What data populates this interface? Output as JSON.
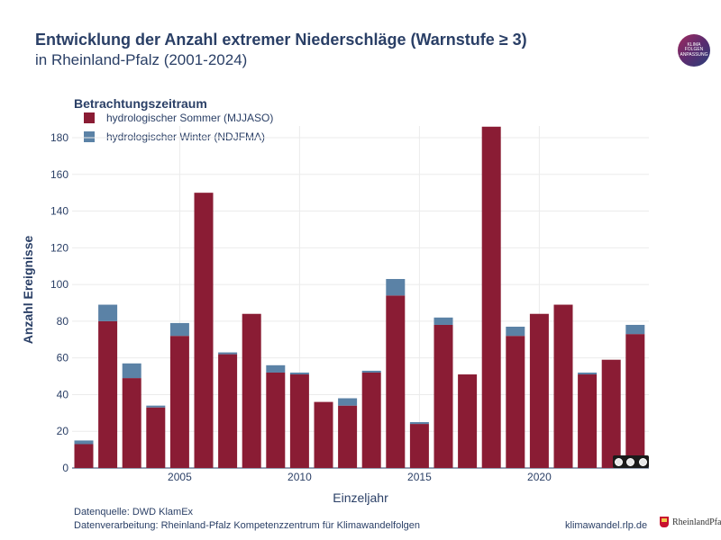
{
  "header": {
    "title": "Entwicklung der Anzahl extremer Niederschläge (Warnstufe ≥ 3)",
    "subtitle": "in Rheinland-Pfalz (2001-2024)"
  },
  "logo": {
    "line1": "KLIMA",
    "line2": "FOLGEN",
    "line3": "ANPASSUNG"
  },
  "legend": {
    "title": "Betrachtungszeitraum",
    "items": [
      {
        "label": "hydrologischer Sommer (MJJASO)",
        "color": "#8a1c34"
      },
      {
        "label": "hydrologischer Winter (NDJFMA)",
        "color": "#5b82a6"
      }
    ]
  },
  "chart_data": {
    "type": "bar",
    "stacked": true,
    "xlabel": "Einzeljahr",
    "ylabel": "Anzahl Ereignisse",
    "ylim": [
      0,
      190
    ],
    "yticks": [
      0,
      20,
      40,
      60,
      80,
      100,
      120,
      140,
      160,
      180
    ],
    "xticks": [
      2005,
      2010,
      2015,
      2020
    ],
    "x": [
      2001,
      2002,
      2003,
      2004,
      2005,
      2006,
      2007,
      2008,
      2009,
      2010,
      2011,
      2012,
      2013,
      2014,
      2015,
      2016,
      2017,
      2018,
      2019,
      2020,
      2021,
      2022,
      2023,
      2024
    ],
    "series": [
      {
        "name": "hydrologischer Sommer (MJJASO)",
        "color": "#8a1c34",
        "values": [
          13,
          80,
          49,
          33,
          72,
          150,
          62,
          84,
          52,
          51,
          36,
          34,
          52,
          94,
          24,
          78,
          51,
          186,
          72,
          84,
          89,
          51,
          59,
          73
        ]
      },
      {
        "name": "hydrologischer Winter (NDJFMA)",
        "color": "#5b82a6",
        "values": [
          2,
          9,
          8,
          1,
          7,
          0,
          1,
          0,
          4,
          1,
          0,
          4,
          1,
          9,
          1,
          4,
          0,
          0,
          5,
          0,
          0,
          1,
          0,
          5
        ]
      }
    ]
  },
  "footer": {
    "source": "Datenquelle: DWD KlamEx",
    "processing": "Datenverarbeitung: Rheinland-Pfalz Kompetenzzentrum für Klimawandelfolgen",
    "url": "klimawandel.rlp.de",
    "brand": "RheinlandPfalz"
  }
}
